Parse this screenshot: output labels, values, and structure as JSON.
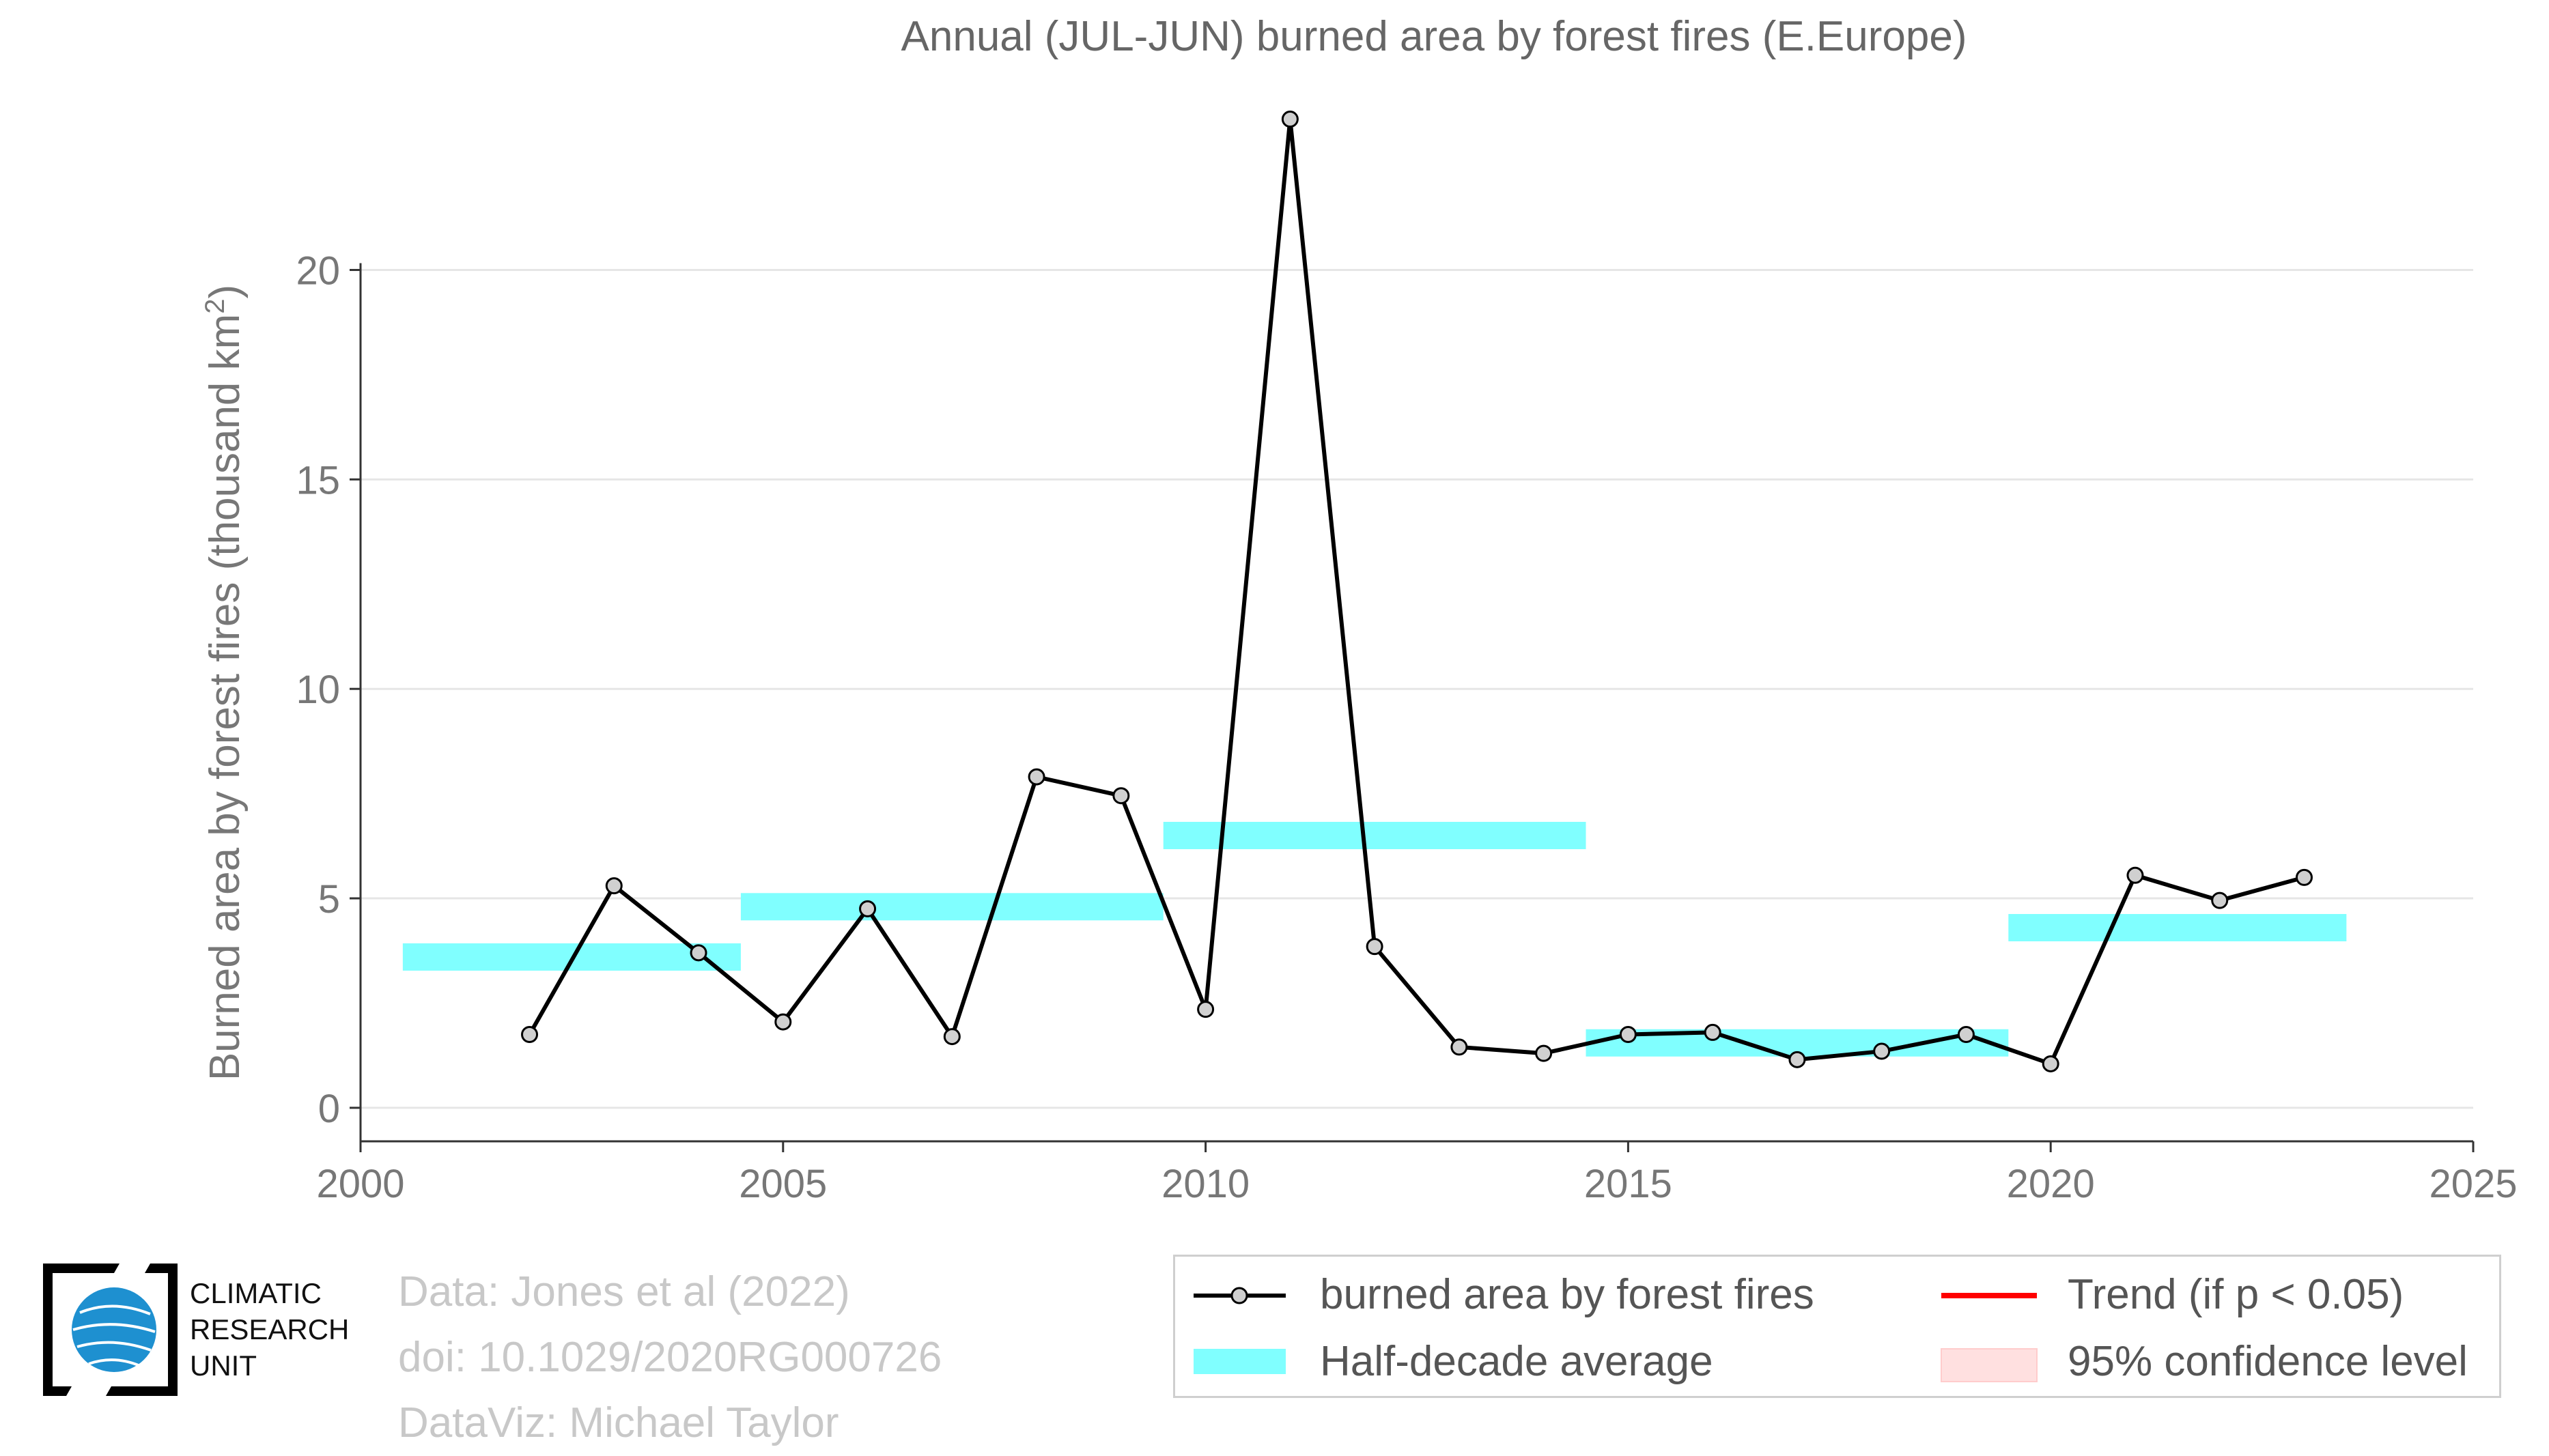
{
  "chart_data": {
    "type": "line",
    "title": "Annual (JUL-JUN) burned area by forest fires (E.Europe)",
    "ylabel_main": "Burned area by forest fires (thousand km",
    "ylabel_sup": "2",
    "ylabel_end": ")",
    "xlim": [
      2000,
      2025
    ],
    "ylim": [
      -0.8,
      24
    ],
    "x_ticks": [
      2000,
      2005,
      2010,
      2015,
      2020,
      2025
    ],
    "y_ticks": [
      0,
      5,
      10,
      15,
      20
    ],
    "grid": "horizontal",
    "legend_position": "bottom-right",
    "series": [
      {
        "name": "burned area by forest fires",
        "color": "#000000",
        "marker_fill": "#d0d0d0",
        "x": [
          2002,
          2003,
          2004,
          2005,
          2006,
          2007,
          2008,
          2009,
          2010,
          2011,
          2012,
          2013,
          2014,
          2015,
          2016,
          2017,
          2018,
          2019,
          2020,
          2021,
          2022,
          2023
        ],
        "values": [
          1.75,
          5.3,
          3.7,
          2.05,
          4.75,
          1.7,
          7.9,
          7.45,
          2.35,
          23.6,
          3.85,
          1.45,
          1.3,
          1.75,
          1.8,
          1.15,
          1.35,
          1.75,
          1.05,
          5.55,
          4.95,
          5.5
        ]
      }
    ],
    "half_decade_average": {
      "name": "Half-decade average",
      "color": "#80ffff",
      "segments": [
        {
          "x0": 2000.5,
          "x1": 2004.5,
          "value": 3.6
        },
        {
          "x0": 2004.5,
          "x1": 2009.5,
          "value": 4.8
        },
        {
          "x0": 2009.5,
          "x1": 2014.5,
          "value": 6.5
        },
        {
          "x0": 2014.5,
          "x1": 2019.5,
          "value": 1.55
        },
        {
          "x0": 2019.5,
          "x1": 2023.5,
          "value": 4.3
        }
      ]
    },
    "legend": [
      {
        "label": "burned area by forest fires",
        "kind": "line-marker",
        "color": "#000000"
      },
      {
        "label": "Trend (if p < 0.05)",
        "kind": "line",
        "color": "#ff0000"
      },
      {
        "label": "Half-decade average",
        "kind": "band",
        "color": "#80ffff"
      },
      {
        "label": "95% confidence level",
        "kind": "band",
        "color": "#ffe0e0"
      }
    ]
  },
  "footer": {
    "source_line1": "Data: Jones et al (2022)",
    "source_line2": "doi: 10.1029/2020RG000726",
    "source_line3": "DataViz: Michael Taylor"
  },
  "logo": {
    "line1": "CLIMATIC",
    "line2": "RESEARCH",
    "line3": "UNIT",
    "globe_color": "#1e90d0"
  }
}
